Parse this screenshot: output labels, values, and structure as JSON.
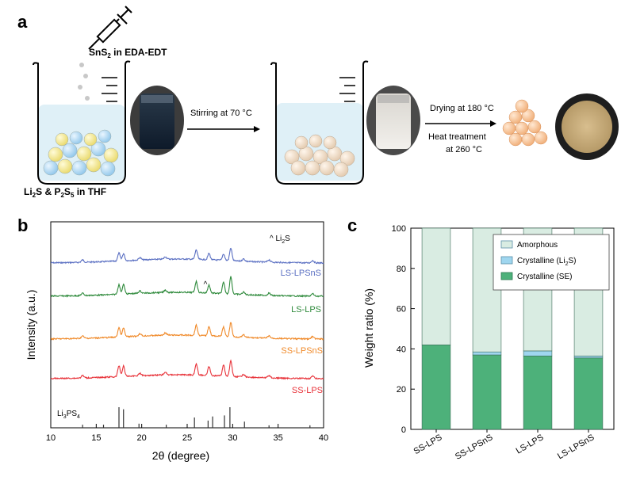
{
  "panel_a": {
    "label": "a",
    "top_reagent": {
      "formula": "SnS",
      "sub": "2",
      "rest": " in EDA-EDT"
    },
    "bottom_reagent": {
      "p1": "Li",
      "s1": "2",
      "p2": "S & P",
      "s2": "2",
      "p3": "S",
      "s3": "5",
      "p4": " in THF"
    },
    "step1": "Stirring at 70 °C",
    "step2a": "Drying at 180 °C",
    "step2b": "Heat treatment",
    "step2c": "at 260 °C"
  },
  "panel_b": {
    "label": "b",
    "legend": "^ Li",
    "legend_sub": "2",
    "legend_tail": "S",
    "ref_label": "Li",
    "ref_sub1": "3",
    "ref_mid": "PS",
    "ref_sub2": "4",
    "chart_data": {
      "type": "line",
      "xlabel": "2θ (degree)",
      "ylabel": "Intensity (a.u.)",
      "xlim": [
        10,
        40
      ],
      "xticks": [
        "10",
        "15",
        "20",
        "25",
        "30",
        "35",
        "40"
      ],
      "series": [
        {
          "name": "LS-LPSnS",
          "color": "#5a6fc2"
        },
        {
          "name": "LS-LPS",
          "color": "#2f8a3c"
        },
        {
          "name": "SS-LPSnS",
          "color": "#f08a2a"
        },
        {
          "name": "SS-LPS",
          "color": "#e8333a"
        }
      ],
      "peaks": [
        17.5,
        18.0,
        26.0,
        27.4,
        29.0,
        29.8
      ],
      "reference_lines": [
        {
          "x": 13.5,
          "h": 0.15
        },
        {
          "x": 15.8,
          "h": 0.15
        },
        {
          "x": 17.5,
          "h": 1.0
        },
        {
          "x": 18.0,
          "h": 0.9
        },
        {
          "x": 19.7,
          "h": 0.2
        },
        {
          "x": 22.7,
          "h": 0.15
        },
        {
          "x": 25.8,
          "h": 0.5
        },
        {
          "x": 27.3,
          "h": 0.35
        },
        {
          "x": 27.8,
          "h": 0.55
        },
        {
          "x": 29.1,
          "h": 0.6
        },
        {
          "x": 29.7,
          "h": 1.0
        },
        {
          "x": 31.3,
          "h": 0.3
        },
        {
          "x": 34.0,
          "h": 0.12
        },
        {
          "x": 38.5,
          "h": 0.12
        }
      ]
    }
  },
  "panel_c": {
    "label": "c",
    "chart_data": {
      "type": "bar",
      "stacked": true,
      "categories": [
        "SS-LPS",
        "SS-LPSnS",
        "LS-LPS",
        "LS-LPSnS"
      ],
      "series": [
        {
          "name": "Crystalline (SE)",
          "values": [
            42,
            37,
            36.5,
            35.5
          ],
          "color": "#4db17a"
        },
        {
          "name": "Crystalline (Li2S)",
          "values": [
            0,
            1.5,
            2.5,
            1
          ],
          "color": "#9fd6ef"
        },
        {
          "name": "Amorphous",
          "values": [
            58,
            61.5,
            61,
            63.5
          ],
          "color": "#d9ece2"
        }
      ],
      "legend": [
        "Amorphous",
        "Crystalline (Li",
        "Crystalline (SE)"
      ],
      "legend_li_sub": "2",
      "legend_li_tail": "S)",
      "ylabel": "Weight ratio (%)",
      "ylim": [
        0,
        100
      ],
      "yticks": [
        "0",
        "20",
        "40",
        "60",
        "80",
        "100"
      ]
    }
  }
}
